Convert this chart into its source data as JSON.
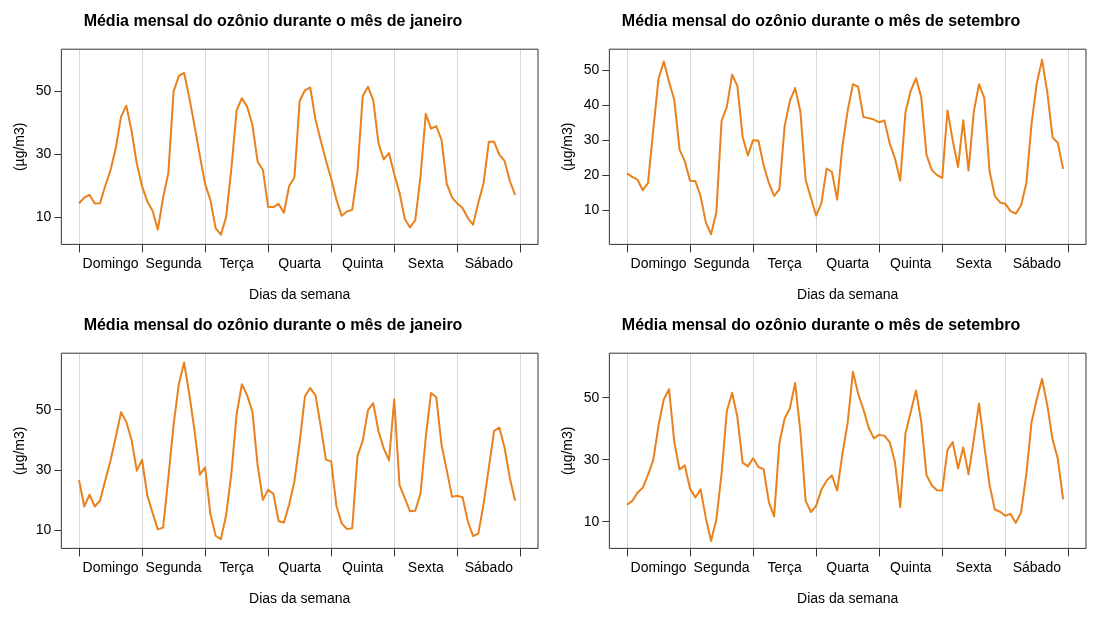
{
  "chart_data": [
    {
      "type": "line",
      "title": "Média mensal do ozônio durante o mês de janeiro",
      "xlabel": "Dias da semana",
      "ylabel": "(µg/m3)",
      "ylim": [
        1.3,
        63.5
      ],
      "yticks": [
        10,
        30,
        50
      ],
      "grid": "x",
      "legend": false,
      "marker": "none",
      "line_style": "solid",
      "categories": [
        null,
        null,
        null,
        null,
        null,
        null,
        "Domingo",
        null,
        null,
        null,
        null,
        null,
        null,
        null,
        null,
        null,
        null,
        null,
        "Segunda",
        null,
        null,
        null,
        null,
        null,
        null,
        null,
        null,
        null,
        null,
        null,
        "Terça",
        null,
        null,
        null,
        null,
        null,
        null,
        null,
        null,
        null,
        null,
        null,
        "Quarta",
        null,
        null,
        null,
        null,
        null,
        null,
        null,
        null,
        null,
        null,
        null,
        "Quinta",
        null,
        null,
        null,
        null,
        null,
        null,
        null,
        null,
        null,
        null,
        null,
        "Sexta",
        null,
        null,
        null,
        null,
        null,
        null,
        null,
        null,
        null,
        null,
        null,
        "Sábado",
        null,
        null,
        null,
        null,
        null
      ],
      "series": [
        {
          "color": "#e9811c",
          "values": [
            14.4,
            16.2,
            17.1,
            14.3,
            14.4,
            20,
            25,
            32,
            42,
            45.5,
            37.5,
            27,
            19.8,
            15,
            12,
            6,
            16.2,
            24,
            50,
            55,
            56,
            48,
            39,
            29.5,
            20.5,
            15.5,
            6.5,
            4.4,
            10,
            25.5,
            44,
            47.9,
            45.2,
            39.4,
            27.6,
            25,
            13.2,
            13.2,
            14.2,
            11.4,
            19.9,
            22.6,
            47,
            50.4,
            51.3,
            41.2,
            34.4,
            28,
            22.2,
            15.5,
            10.4,
            11.8,
            12.3,
            24.4,
            48.6,
            51.5,
            47.3,
            33.5,
            28.4,
            30.4,
            23.7,
            17.8,
            9.4,
            6.7,
            9,
            23,
            42.9,
            38.2,
            39,
            34.6,
            20.6,
            16.3,
            14.3,
            12.9,
            9.7,
            7.6,
            14.6,
            20.8,
            34,
            34,
            29.9,
            27.9,
            21.5,
            17.1
          ]
        }
      ]
    },
    {
      "type": "line",
      "title": "Média mensal do ozônio durante o mês de setembro",
      "xlabel": "Dias da semana",
      "ylabel": "(µg/m3)",
      "ylim": [
        0.2,
        56
      ],
      "yticks": [
        10,
        20,
        30,
        40,
        50
      ],
      "grid": "x",
      "legend": false,
      "marker": "none",
      "line_style": "solid",
      "categories": [
        null,
        null,
        null,
        null,
        null,
        null,
        "Domingo",
        null,
        null,
        null,
        null,
        null,
        null,
        null,
        null,
        null,
        null,
        null,
        "Segunda",
        null,
        null,
        null,
        null,
        null,
        null,
        null,
        null,
        null,
        null,
        null,
        "Terça",
        null,
        null,
        null,
        null,
        null,
        null,
        null,
        null,
        null,
        null,
        null,
        "Quarta",
        null,
        null,
        null,
        null,
        null,
        null,
        null,
        null,
        null,
        null,
        null,
        "Quinta",
        null,
        null,
        null,
        null,
        null,
        null,
        null,
        null,
        null,
        null,
        null,
        "Sexta",
        null,
        null,
        null,
        null,
        null,
        null,
        null,
        null,
        null,
        null,
        null,
        "Sábado",
        null,
        null,
        null,
        null,
        null
      ],
      "series": [
        {
          "color": "#e9811c",
          "values": [
            20.5,
            19.5,
            18.7,
            15.7,
            17.8,
            33,
            47.6,
            52.5,
            46.7,
            41.5,
            27.3,
            24,
            18.4,
            18.3,
            14,
            6.5,
            3.1,
            9.4,
            35.5,
            39.5,
            48.7,
            45.5,
            31,
            25.6,
            30,
            29.9,
            22.8,
            17.7,
            14.1,
            15.9,
            34,
            41.2,
            44.9,
            38.1,
            18.6,
            13.5,
            8.4,
            12,
            21.9,
            20.9,
            13,
            28.3,
            38.5,
            46,
            45.2,
            36.6,
            36.3,
            35.9,
            35.1,
            35.6,
            29,
            24.8,
            18.4,
            38,
            44.1,
            47.7,
            42.3,
            25.8,
            21.5,
            20,
            19.2,
            38.5,
            29.9,
            22.3,
            35.7,
            21.3,
            38.1,
            46,
            42.1,
            21.1,
            14.1,
            12.2,
            11.8,
            9.7,
            9,
            11.4,
            17.7,
            34.7,
            46.3,
            53,
            43.6,
            30.8,
            29.2,
            21.8
          ]
        }
      ]
    },
    {
      "type": "line",
      "title": "Média mensal do ozônio durante o mês de janeiro",
      "xlabel": "Dias da semana",
      "ylabel": "(µg/m3)",
      "ylim": [
        4,
        68.8
      ],
      "yticks": [
        10,
        30,
        50
      ],
      "grid": "x",
      "legend": false,
      "marker": "none",
      "line_style": "solid",
      "categories": [
        null,
        null,
        null,
        null,
        null,
        null,
        "Domingo",
        null,
        null,
        null,
        null,
        null,
        null,
        null,
        null,
        null,
        null,
        null,
        "Segunda",
        null,
        null,
        null,
        null,
        null,
        null,
        null,
        null,
        null,
        null,
        null,
        "Terça",
        null,
        null,
        null,
        null,
        null,
        null,
        null,
        null,
        null,
        null,
        null,
        "Quarta",
        null,
        null,
        null,
        null,
        null,
        null,
        null,
        null,
        null,
        null,
        null,
        "Quinta",
        null,
        null,
        null,
        null,
        null,
        null,
        null,
        null,
        null,
        null,
        null,
        "Sexta",
        null,
        null,
        null,
        null,
        null,
        null,
        null,
        null,
        null,
        null,
        null,
        "Sábado",
        null,
        null,
        null,
        null,
        null
      ],
      "series": [
        {
          "color": "#e9811c",
          "values": [
            26.6,
            17.9,
            21.8,
            17.9,
            19.9,
            26.6,
            33.2,
            41,
            49.2,
            46,
            40,
            29.8,
            33.4,
            21.6,
            15.8,
            10.3,
            10.9,
            27.5,
            45,
            58.6,
            65.7,
            55.1,
            42.9,
            28.5,
            30.9,
            15.5,
            8.2,
            7.1,
            15,
            28.8,
            48.6,
            58.5,
            54.8,
            49.4,
            31.5,
            20.1,
            23.5,
            22.1,
            13,
            12.6,
            18.6,
            26.3,
            39.2,
            54.5,
            57.2,
            54.9,
            44.6,
            33.4,
            32.9,
            18,
            12.3,
            10.4,
            10.7,
            34.7,
            39.7,
            49.9,
            52.2,
            42.9,
            37.2,
            33.2,
            53.5,
            25,
            20.7,
            16.3,
            16.5,
            22.2,
            40.9,
            55.6,
            54.2,
            38.3,
            29.9,
            21.1,
            21.5,
            21,
            13,
            8.1,
            8.9,
            18.7,
            30.7,
            43,
            44.1,
            37.4,
            27.4,
            19.8
          ]
        }
      ]
    },
    {
      "type": "line",
      "title": "Média mensal do ozônio durante o mês de setembro",
      "xlabel": "Dias da semana",
      "ylabel": "(µg/m3)",
      "ylim": [
        1.5,
        64.3
      ],
      "yticks": [
        10,
        30,
        50
      ],
      "grid": "x",
      "legend": false,
      "marker": "none",
      "line_style": "solid",
      "categories": [
        null,
        null,
        null,
        null,
        null,
        null,
        "Domingo",
        null,
        null,
        null,
        null,
        null,
        null,
        null,
        null,
        null,
        null,
        null,
        "Segunda",
        null,
        null,
        null,
        null,
        null,
        null,
        null,
        null,
        null,
        null,
        null,
        "Terça",
        null,
        null,
        null,
        null,
        null,
        null,
        null,
        null,
        null,
        null,
        null,
        "Quarta",
        null,
        null,
        null,
        null,
        null,
        null,
        null,
        null,
        null,
        null,
        null,
        "Quinta",
        null,
        null,
        null,
        null,
        null,
        null,
        null,
        null,
        null,
        null,
        null,
        "Sexta",
        null,
        null,
        null,
        null,
        null,
        null,
        null,
        null,
        null,
        null,
        null,
        "Sábado",
        null,
        null,
        null,
        null,
        null
      ],
      "series": [
        {
          "color": "#e9811c",
          "values": [
            15.5,
            16.8,
            19.4,
            21,
            25.2,
            30,
            41.1,
            49.4,
            52.7,
            35.7,
            26.9,
            28.2,
            20.7,
            17.9,
            20.5,
            11.3,
            3.9,
            10.8,
            25.6,
            45.7,
            51.6,
            43.8,
            29.1,
            27.9,
            30.5,
            27.7,
            27,
            16.4,
            11.8,
            35.4,
            43.3,
            46.6,
            54.7,
            39,
            16.8,
            13.2,
            15.2,
            20.4,
            23.3,
            25,
            20.1,
            31.9,
            42,
            58.3,
            51.2,
            46.2,
            40.3,
            36.9,
            38.1,
            37.7,
            35.7,
            29.2,
            14.8,
            38.5,
            45.4,
            52.3,
            42.2,
            25.1,
            21.8,
            20.2,
            20.1,
            33.2,
            35.7,
            27.2,
            34,
            25.3,
            36.5,
            48.1,
            34.6,
            22,
            14,
            13.3,
            12,
            12.6,
            9.7,
            13.1,
            25.3,
            42.1,
            49.6,
            56,
            47.5,
            36.5,
            30.3,
            17.3
          ]
        }
      ]
    }
  ]
}
